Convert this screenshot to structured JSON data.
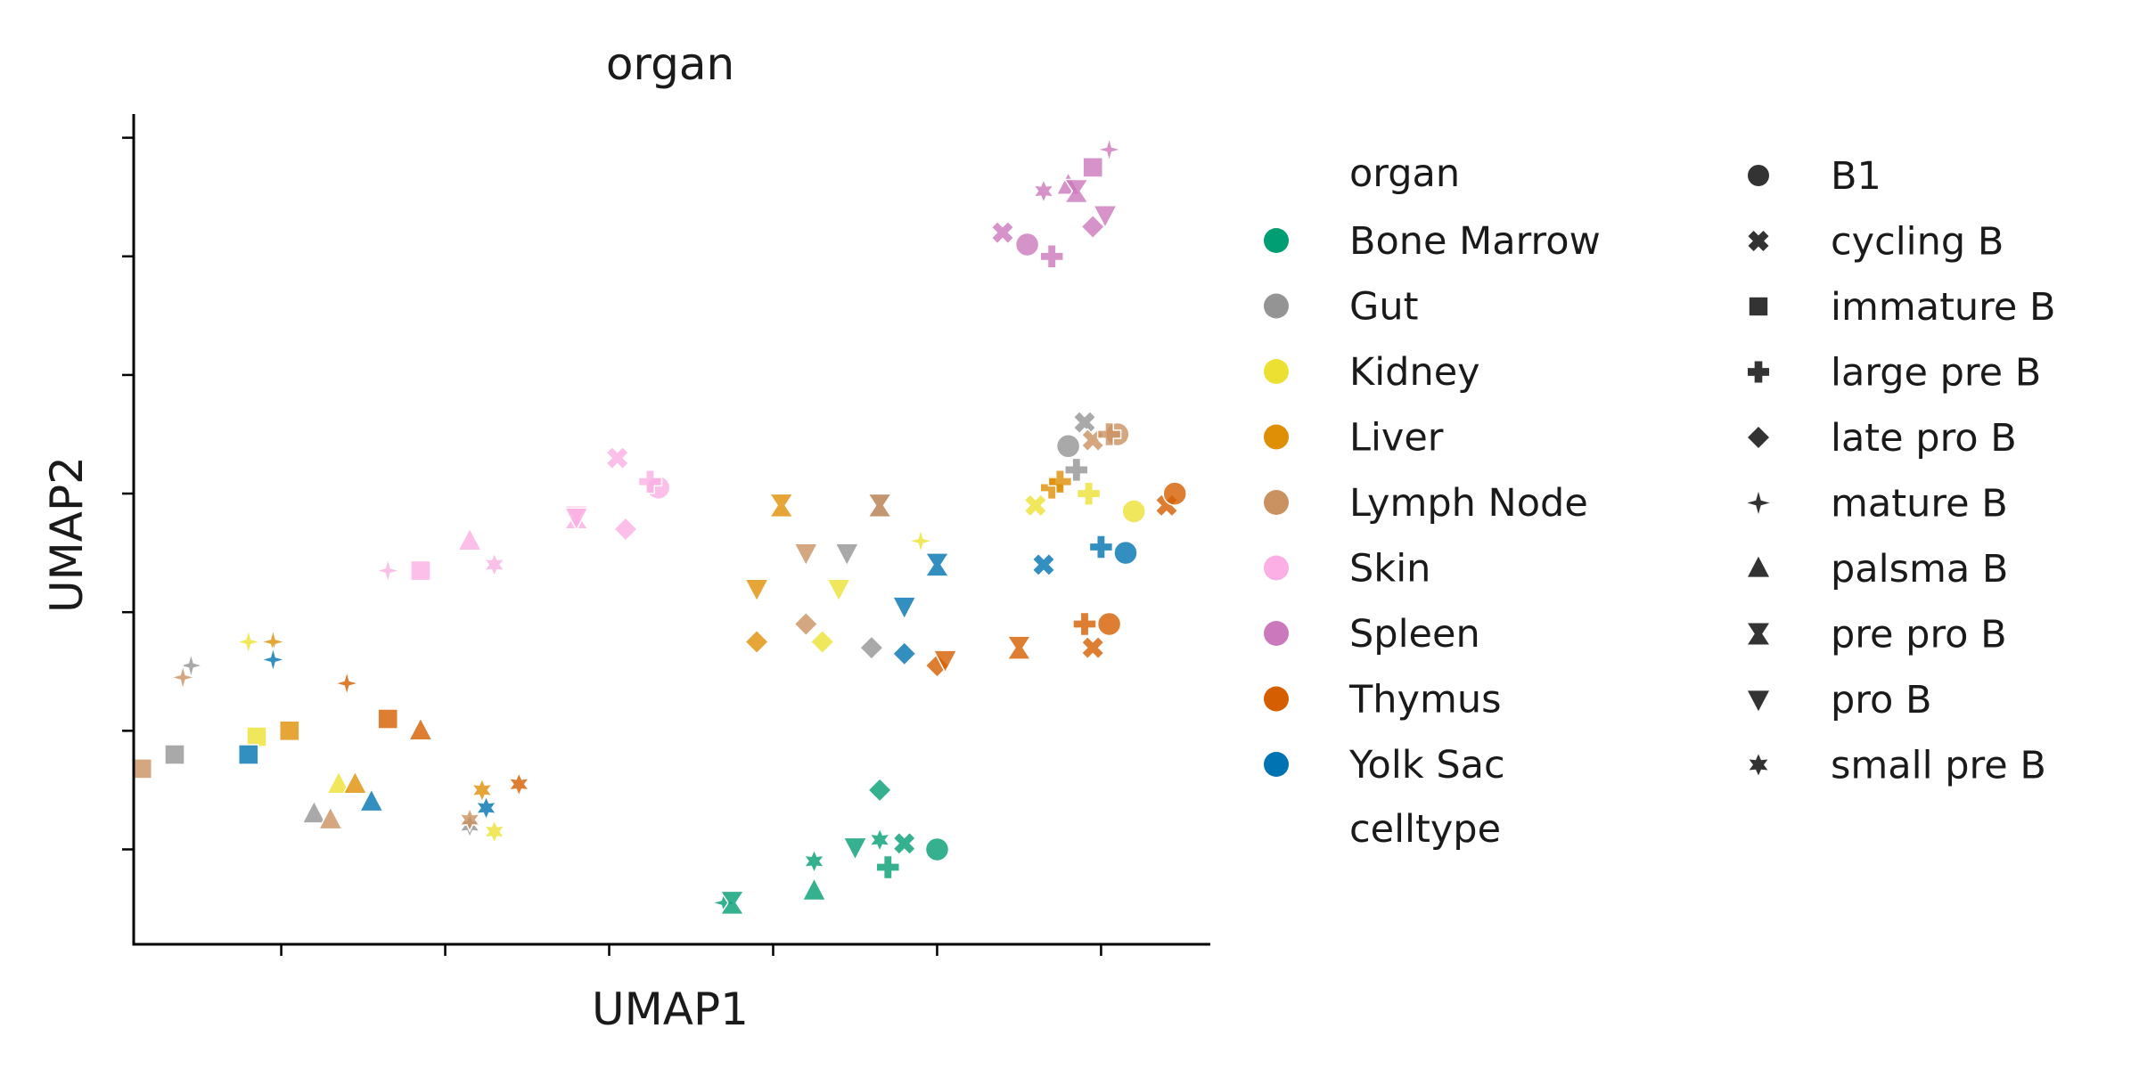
{
  "chart_data": {
    "type": "scatter",
    "title": "organ",
    "xlabel": "UMAP1",
    "ylabel": "UMAP2",
    "xlim": [
      -1.8,
      11.3
    ],
    "ylim": [
      -0.8,
      6.2
    ],
    "ticks_labeled": false,
    "grid": false,
    "legend_position": "right, outside plot, two columns",
    "hue": {
      "title": "organ",
      "entries": [
        {
          "name": "Bone Marrow",
          "color": "#029e73"
        },
        {
          "name": "Gut",
          "color": "#949494"
        },
        {
          "name": "Kidney",
          "color": "#ece133"
        },
        {
          "name": "Liver",
          "color": "#de8f05"
        },
        {
          "name": "Lymph Node",
          "color": "#ca9161"
        },
        {
          "name": "Skin",
          "color": "#fbafe4"
        },
        {
          "name": "Spleen",
          "color": "#cc78bc"
        },
        {
          "name": "Thymus",
          "color": "#d55e00"
        },
        {
          "name": "Yolk Sac",
          "color": "#0173b2"
        }
      ]
    },
    "style": {
      "title": "celltype",
      "entries": [
        {
          "name": "B1",
          "marker": "circle"
        },
        {
          "name": "cycling B",
          "marker": "x"
        },
        {
          "name": "immature B",
          "marker": "square"
        },
        {
          "name": "large pre B",
          "marker": "plus"
        },
        {
          "name": "late pro B",
          "marker": "diamond"
        },
        {
          "name": "mature B",
          "marker": "star4"
        },
        {
          "name": "palsma B",
          "marker": "triangle-up"
        },
        {
          "name": "pre pro B",
          "marker": "hourglass"
        },
        {
          "name": "pro B",
          "marker": "triangle-down"
        },
        {
          "name": "small pre B",
          "marker": "star6"
        }
      ]
    },
    "points": [
      {
        "x": 8.0,
        "y": 0.0,
        "organ": "Bone Marrow",
        "celltype": "B1"
      },
      {
        "x": 7.6,
        "y": 0.05,
        "organ": "Bone Marrow",
        "celltype": "cycling B"
      },
      {
        "x": 7.4,
        "y": -0.15,
        "organ": "Bone Marrow",
        "celltype": "large pre B"
      },
      {
        "x": 7.3,
        "y": 0.5,
        "organ": "Bone Marrow",
        "celltype": "late pro B"
      },
      {
        "x": 5.4,
        "y": -0.45,
        "organ": "Bone Marrow",
        "celltype": "mature B"
      },
      {
        "x": 5.5,
        "y": -0.45,
        "organ": "Bone Marrow",
        "celltype": "pre pro B"
      },
      {
        "x": 6.5,
        "y": -0.35,
        "organ": "Bone Marrow",
        "celltype": "palsma B"
      },
      {
        "x": 7.0,
        "y": 0.02,
        "organ": "Bone Marrow",
        "celltype": "pro B"
      },
      {
        "x": 6.5,
        "y": -0.1,
        "organ": "Bone Marrow",
        "celltype": "small pre B"
      },
      {
        "x": 7.3,
        "y": 0.08,
        "organ": "Bone Marrow",
        "celltype": "small pre B"
      },
      {
        "x": 9.6,
        "y": 3.4,
        "organ": "Gut",
        "celltype": "B1"
      },
      {
        "x": 9.8,
        "y": 3.6,
        "organ": "Gut",
        "celltype": "cycling B"
      },
      {
        "x": 9.7,
        "y": 3.2,
        "organ": "Gut",
        "celltype": "large pre B"
      },
      {
        "x": 7.2,
        "y": 1.7,
        "organ": "Gut",
        "celltype": "late pro B"
      },
      {
        "x": -1.1,
        "y": 1.55,
        "organ": "Gut",
        "celltype": "mature B"
      },
      {
        "x": 7.3,
        "y": 2.9,
        "organ": "Gut",
        "celltype": "pre pro B"
      },
      {
        "x": 6.9,
        "y": 2.5,
        "organ": "Gut",
        "celltype": "pro B"
      },
      {
        "x": -1.3,
        "y": 0.8,
        "organ": "Gut",
        "celltype": "immature B"
      },
      {
        "x": 0.4,
        "y": 0.3,
        "organ": "Gut",
        "celltype": "palsma B"
      },
      {
        "x": 2.3,
        "y": 0.2,
        "organ": "Gut",
        "celltype": "small pre B"
      },
      {
        "x": 10.4,
        "y": 2.85,
        "organ": "Kidney",
        "celltype": "B1"
      },
      {
        "x": 9.2,
        "y": 2.9,
        "organ": "Kidney",
        "celltype": "cycling B"
      },
      {
        "x": 9.85,
        "y": 3.0,
        "organ": "Kidney",
        "celltype": "large pre B"
      },
      {
        "x": 6.6,
        "y": 1.75,
        "organ": "Kidney",
        "celltype": "late pro B"
      },
      {
        "x": -0.4,
        "y": 1.75,
        "organ": "Kidney",
        "celltype": "mature B"
      },
      {
        "x": 7.8,
        "y": 2.6,
        "organ": "Kidney",
        "celltype": "mature B"
      },
      {
        "x": -0.3,
        "y": 0.95,
        "organ": "Kidney",
        "celltype": "immature B"
      },
      {
        "x": 0.7,
        "y": 0.55,
        "organ": "Kidney",
        "celltype": "palsma B"
      },
      {
        "x": 6.8,
        "y": 2.2,
        "organ": "Kidney",
        "celltype": "pro B"
      },
      {
        "x": 2.6,
        "y": 0.15,
        "organ": "Kidney",
        "celltype": "small pre B"
      },
      {
        "x": 9.4,
        "y": 3.05,
        "organ": "Liver",
        "celltype": "large pre B"
      },
      {
        "x": 9.5,
        "y": 3.1,
        "organ": "Liver",
        "celltype": "large pre B"
      },
      {
        "x": 5.8,
        "y": 1.75,
        "organ": "Liver",
        "celltype": "late pro B"
      },
      {
        "x": -0.1,
        "y": 1.75,
        "organ": "Liver",
        "celltype": "mature B"
      },
      {
        "x": 6.1,
        "y": 2.9,
        "organ": "Liver",
        "celltype": "pre pro B"
      },
      {
        "x": 5.8,
        "y": 2.2,
        "organ": "Liver",
        "celltype": "pro B"
      },
      {
        "x": 0.1,
        "y": 1.0,
        "organ": "Liver",
        "celltype": "immature B"
      },
      {
        "x": 0.9,
        "y": 0.55,
        "organ": "Liver",
        "celltype": "palsma B"
      },
      {
        "x": 2.45,
        "y": 0.5,
        "organ": "Liver",
        "celltype": "small pre B"
      },
      {
        "x": 10.2,
        "y": 3.5,
        "organ": "Lymph Node",
        "celltype": "B1"
      },
      {
        "x": 9.9,
        "y": 3.45,
        "organ": "Lymph Node",
        "celltype": "cycling B"
      },
      {
        "x": 10.1,
        "y": 3.5,
        "organ": "Lymph Node",
        "celltype": "large pre B"
      },
      {
        "x": 6.4,
        "y": 1.9,
        "organ": "Lymph Node",
        "celltype": "late pro B"
      },
      {
        "x": -1.2,
        "y": 1.45,
        "organ": "Lymph Node",
        "celltype": "mature B"
      },
      {
        "x": 7.3,
        "y": 2.9,
        "organ": "Lymph Node",
        "celltype": "pre pro B"
      },
      {
        "x": 6.4,
        "y": 2.5,
        "organ": "Lymph Node",
        "celltype": "pro B"
      },
      {
        "x": -1.7,
        "y": 0.68,
        "organ": "Lymph Node",
        "celltype": "immature B"
      },
      {
        "x": 0.6,
        "y": 0.25,
        "organ": "Lymph Node",
        "celltype": "palsma B"
      },
      {
        "x": 2.3,
        "y": 0.25,
        "organ": "Lymph Node",
        "celltype": "small pre B"
      },
      {
        "x": 4.6,
        "y": 3.05,
        "organ": "Skin",
        "celltype": "B1"
      },
      {
        "x": 4.1,
        "y": 3.3,
        "organ": "Skin",
        "celltype": "cycling B"
      },
      {
        "x": 4.5,
        "y": 3.1,
        "organ": "Skin",
        "celltype": "large pre B"
      },
      {
        "x": 4.2,
        "y": 2.7,
        "organ": "Skin",
        "celltype": "late pro B"
      },
      {
        "x": 1.3,
        "y": 2.35,
        "organ": "Skin",
        "celltype": "mature B"
      },
      {
        "x": 3.6,
        "y": 2.8,
        "organ": "Skin",
        "celltype": "pre pro B"
      },
      {
        "x": 1.7,
        "y": 2.35,
        "organ": "Skin",
        "celltype": "immature B"
      },
      {
        "x": 2.3,
        "y": 2.6,
        "organ": "Skin",
        "celltype": "palsma B"
      },
      {
        "x": 3.6,
        "y": 2.8,
        "organ": "Skin",
        "celltype": "pro B"
      },
      {
        "x": 2.6,
        "y": 2.4,
        "organ": "Skin",
        "celltype": "small pre B"
      },
      {
        "x": 9.1,
        "y": 5.1,
        "organ": "Spleen",
        "celltype": "B1"
      },
      {
        "x": 8.8,
        "y": 5.2,
        "organ": "Spleen",
        "celltype": "cycling B"
      },
      {
        "x": 9.4,
        "y": 5.0,
        "organ": "Spleen",
        "celltype": "large pre B"
      },
      {
        "x": 9.9,
        "y": 5.25,
        "organ": "Spleen",
        "celltype": "late pro B"
      },
      {
        "x": 10.1,
        "y": 5.9,
        "organ": "Spleen",
        "celltype": "mature B"
      },
      {
        "x": 9.9,
        "y": 5.75,
        "organ": "Spleen",
        "celltype": "immature B"
      },
      {
        "x": 9.6,
        "y": 5.6,
        "organ": "Spleen",
        "celltype": "palsma B"
      },
      {
        "x": 9.7,
        "y": 5.55,
        "organ": "Spleen",
        "celltype": "pre pro B"
      },
      {
        "x": 10.05,
        "y": 5.35,
        "organ": "Spleen",
        "celltype": "pro B"
      },
      {
        "x": 9.3,
        "y": 5.55,
        "organ": "Spleen",
        "celltype": "small pre B"
      },
      {
        "x": 10.1,
        "y": 1.9,
        "organ": "Thymus",
        "celltype": "B1"
      },
      {
        "x": 9.9,
        "y": 1.7,
        "organ": "Thymus",
        "celltype": "cycling B"
      },
      {
        "x": 10.8,
        "y": 2.9,
        "organ": "Thymus",
        "celltype": "cycling B"
      },
      {
        "x": 9.8,
        "y": 1.9,
        "organ": "Thymus",
        "celltype": "large pre B"
      },
      {
        "x": 8.0,
        "y": 1.55,
        "organ": "Thymus",
        "celltype": "late pro B"
      },
      {
        "x": 0.8,
        "y": 1.4,
        "organ": "Thymus",
        "celltype": "mature B"
      },
      {
        "x": 9.0,
        "y": 1.7,
        "organ": "Thymus",
        "celltype": "pre pro B"
      },
      {
        "x": 1.3,
        "y": 1.1,
        "organ": "Thymus",
        "celltype": "immature B"
      },
      {
        "x": 1.7,
        "y": 1.0,
        "organ": "Thymus",
        "celltype": "palsma B"
      },
      {
        "x": 8.1,
        "y": 1.6,
        "organ": "Thymus",
        "celltype": "pro B"
      },
      {
        "x": 2.9,
        "y": 0.55,
        "organ": "Thymus",
        "celltype": "small pre B"
      },
      {
        "x": 10.9,
        "y": 3.0,
        "organ": "Thymus",
        "celltype": "B1"
      },
      {
        "x": 10.3,
        "y": 2.5,
        "organ": "Yolk Sac",
        "celltype": "B1"
      },
      {
        "x": 9.3,
        "y": 2.4,
        "organ": "Yolk Sac",
        "celltype": "cycling B"
      },
      {
        "x": 10.0,
        "y": 2.55,
        "organ": "Yolk Sac",
        "celltype": "large pre B"
      },
      {
        "x": 7.6,
        "y": 1.65,
        "organ": "Yolk Sac",
        "celltype": "late pro B"
      },
      {
        "x": -0.1,
        "y": 1.6,
        "organ": "Yolk Sac",
        "celltype": "mature B"
      },
      {
        "x": 8.0,
        "y": 2.4,
        "organ": "Yolk Sac",
        "celltype": "pre pro B"
      },
      {
        "x": -0.4,
        "y": 0.8,
        "organ": "Yolk Sac",
        "celltype": "immature B"
      },
      {
        "x": 1.1,
        "y": 0.4,
        "organ": "Yolk Sac",
        "celltype": "palsma B"
      },
      {
        "x": 7.6,
        "y": 2.05,
        "organ": "Yolk Sac",
        "celltype": "pro B"
      },
      {
        "x": 2.5,
        "y": 0.35,
        "organ": "Yolk Sac",
        "celltype": "small pre B"
      }
    ]
  }
}
